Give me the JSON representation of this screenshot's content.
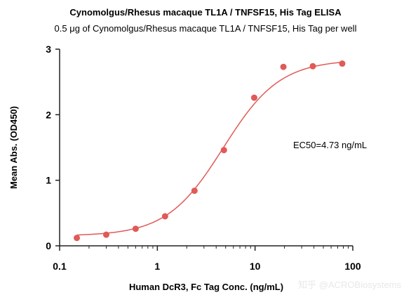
{
  "watermark": "知乎 @ACROBiosystems",
  "chart_data": {
    "type": "scatter",
    "title": "Cynomolgus/Rhesus macaque TL1A / TNFSF15, His Tag  ELISA",
    "subtitle": "0.5 μg of Cynomolgus/Rhesus macaque TL1A / TNFSF15, His Tag  per well",
    "xlabel": "Human DcR3, Fc Tag Conc. (ng/mL)",
    "ylabel": "Mean Abs. (OD450)",
    "x_scale": "log",
    "xlim": [
      0.1,
      100
    ],
    "ylim": [
      0,
      3
    ],
    "x_ticks": [
      0.1,
      1,
      10,
      100
    ],
    "x_tick_labels": [
      "0.1",
      "1",
      "10",
      "100"
    ],
    "y_ticks": [
      0,
      1,
      2,
      3
    ],
    "y_tick_labels": [
      "0",
      "1",
      "2",
      "3"
    ],
    "grid": false,
    "annotation": "EC50=4.73 ng/mL",
    "series": [
      {
        "x": [
          0.15,
          0.3,
          0.6,
          1.2,
          2.4,
          4.8,
          9.8,
          19.5,
          39,
          78
        ],
        "y": [
          0.12,
          0.17,
          0.26,
          0.45,
          0.84,
          1.46,
          2.26,
          2.73,
          2.74,
          2.78
        ],
        "color": "#e05a57"
      }
    ],
    "fit": {
      "model": "4PL",
      "bottom": 0.15,
      "top": 2.84,
      "ec50": 4.73,
      "hill": 1.5,
      "color": "#e05a57"
    }
  }
}
